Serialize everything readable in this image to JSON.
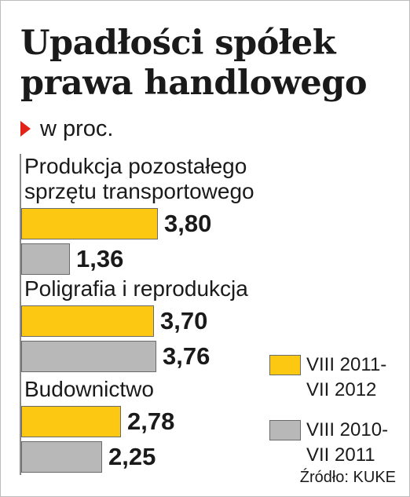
{
  "chart_data": {
    "type": "bar",
    "orientation": "horizontal",
    "title": "Upadłości spółek prawa handlowego",
    "subtitle": "w proc.",
    "categories": [
      "Produkcja pozostałego sprzętu transportowego",
      "Poligrafia i reprodukcja",
      "Budownictwo"
    ],
    "series": [
      {
        "name": "VIII 2011-VII 2012",
        "values": [
          3.8,
          3.7,
          2.78
        ],
        "labels": [
          "3,80",
          "3,70",
          "2,78"
        ],
        "color": "#fcc812"
      },
      {
        "name": "VIII 2010-VII 2011",
        "values": [
          1.36,
          3.76,
          2.25
        ],
        "labels": [
          "1,36",
          "3,76",
          "2,25"
        ],
        "color": "#b8b8b8"
      }
    ],
    "xlim": [
      0,
      4
    ],
    "legend": "bottom-right",
    "grid": false,
    "source": "Źródło: KUKE"
  },
  "legend_lines": [
    [
      "VIII 2011-",
      "VII 2012"
    ],
    [
      "VIII 2010-",
      "VII 2011"
    ]
  ],
  "accent_color": "#e2231a"
}
